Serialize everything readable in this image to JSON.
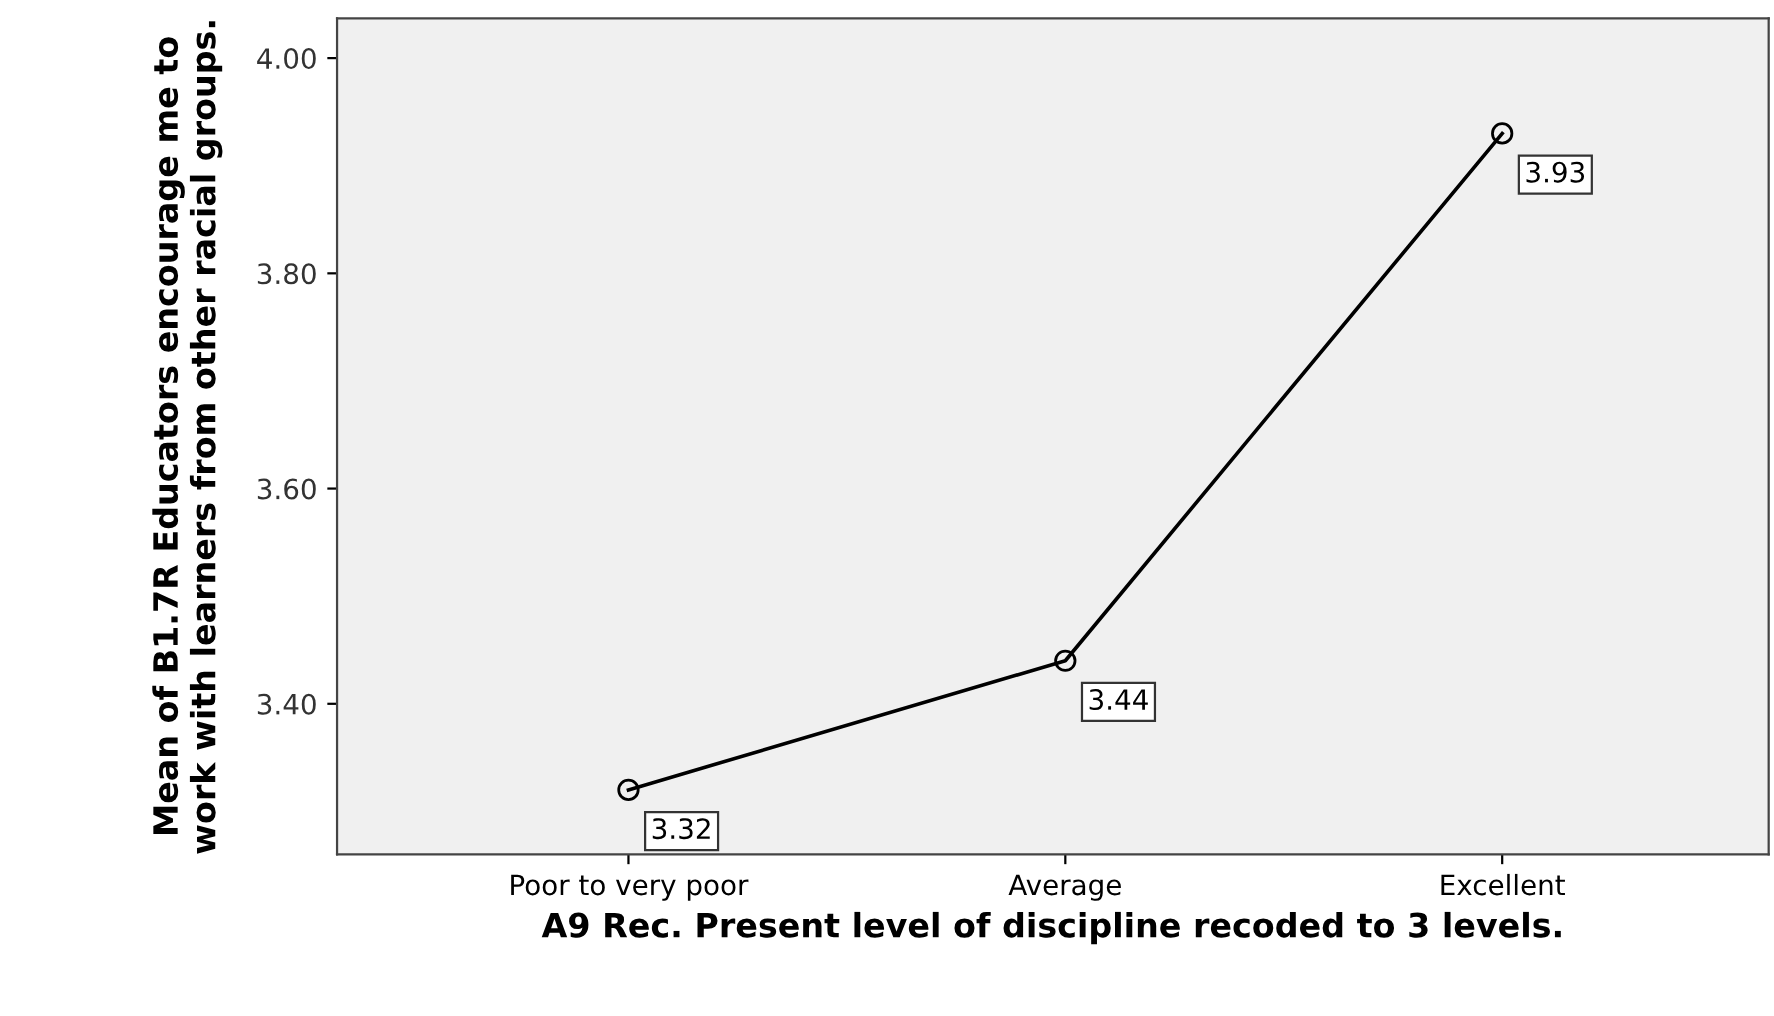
{
  "chart_data": {
    "type": "line",
    "xlabel": "A9 Rec. Present level of discipline recoded to 3 levels.",
    "ylabel": "Mean of B1.7R Educators encourage me to work with learners from other racial groups.",
    "categories": [
      "Poor to very poor",
      "Average",
      "Excellent"
    ],
    "series": [
      {
        "color": "#000000",
        "values": [
          3.32,
          3.44,
          3.93
        ]
      }
    ],
    "ylim": [
      3.26,
      4.037
    ],
    "yticks": [
      {
        "value": 3.4,
        "label": "3.40"
      },
      {
        "value": 3.6,
        "label": "3.60"
      },
      {
        "value": 3.8,
        "label": "3.80"
      },
      {
        "value": 4.0,
        "label": "4.00"
      }
    ],
    "data_labels": true,
    "marker": "circle",
    "line_style": "solid",
    "grid": false,
    "legend": false
  }
}
